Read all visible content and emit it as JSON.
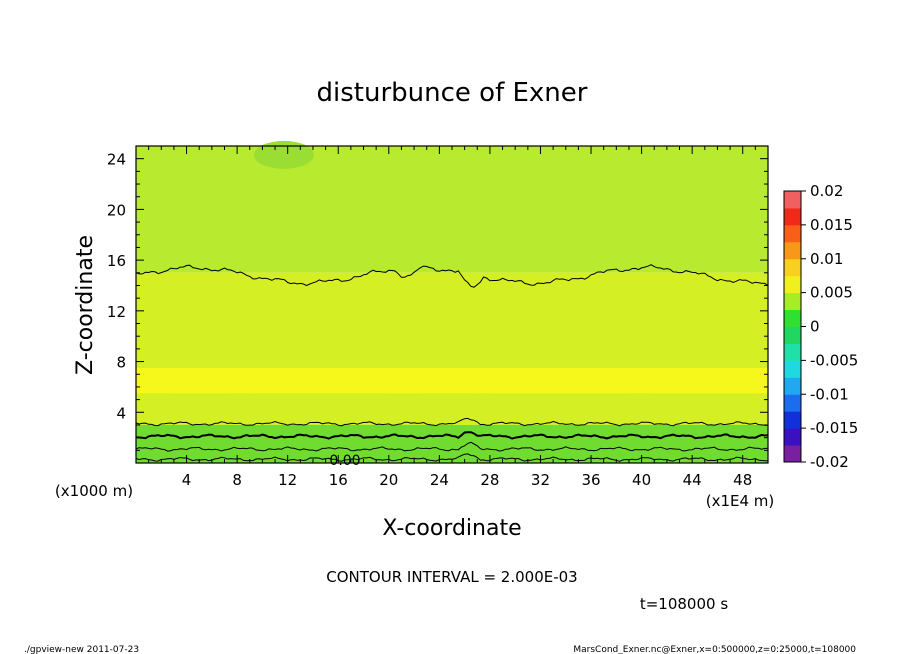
{
  "chart_data": {
    "type": "heatmap",
    "title": "disturbunce of Exner",
    "xlabel": "X-coordinate",
    "ylabel": "Z-coordinate",
    "x_unit_label": "(x1E4 m)",
    "y_unit_label": "(x1000 m)",
    "xlim": [
      0,
      50
    ],
    "ylim": [
      0,
      25
    ],
    "x_ticks": [
      4,
      8,
      12,
      16,
      20,
      24,
      28,
      32,
      36,
      40,
      44,
      48
    ],
    "y_ticks": [
      4,
      8,
      12,
      16,
      20,
      24
    ],
    "x_tick_labels": [
      "4",
      "8",
      "12",
      "16",
      "20",
      "24",
      "28",
      "32",
      "36",
      "40",
      "44",
      "48"
    ],
    "y_tick_labels": [
      "4",
      "8",
      "12",
      "16",
      "20",
      "24"
    ],
    "colorbar": {
      "range": [
        -0.02,
        0.02
      ],
      "step": 0.0025,
      "tick_labels": [
        "0.02",
        "0.015",
        "0.01",
        "0.005",
        "0",
        "-0.005",
        "-0.01",
        "-0.015",
        "-0.02"
      ],
      "colors": [
        "#7a1fa0",
        "#3a10c0",
        "#1030d8",
        "#1c6cf0",
        "#20a8f0",
        "#20d8e0",
        "#20e0a8",
        "#20d860",
        "#30e030",
        "#a8ec28",
        "#f0f020",
        "#f8d020",
        "#f89818",
        "#f86018",
        "#f02a18",
        "#f06060"
      ]
    },
    "field_regions": [
      {
        "name": "upper",
        "z_range": [
          15,
          25
        ],
        "level_range": [
          0.002,
          0.004
        ],
        "color": "#b8ea30"
      },
      {
        "name": "middle",
        "z_range": [
          3,
          15
        ],
        "level_range": [
          0.004,
          0.006
        ],
        "color": "#d4f024"
      },
      {
        "name": "bands",
        "z_range": [
          5.5,
          7.5
        ],
        "level_range": [
          0.006,
          0.008
        ],
        "color": "#f6f81c"
      },
      {
        "name": "lower",
        "z_range": [
          0,
          3
        ],
        "level_range": [
          -0.002,
          0.002
        ],
        "color": "#70dc30"
      }
    ],
    "contour_levels_z": [
      14.8,
      3.1,
      2.1,
      1.1,
      0.3
    ],
    "contour_zero_label": "0.00",
    "contour_interval_text": "CONTOUR INTERVAL = 2.000E-03",
    "time_text": "t=108000 s"
  },
  "footer": {
    "left": "./gpview-new   2011-07-23",
    "right": "MarsCond_Exner.nc@Exner,x=0:500000,z=0:25000,t=108000"
  }
}
